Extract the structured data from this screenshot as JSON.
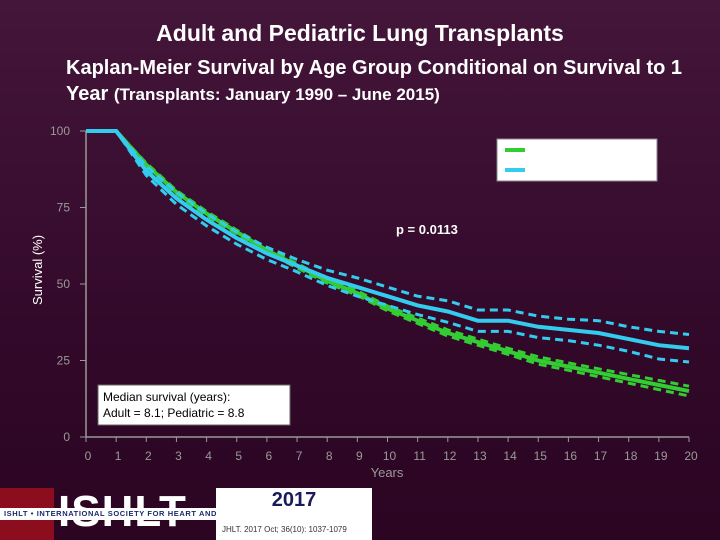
{
  "header": {
    "title": "Adult and Pediatric Lung Transplants",
    "subtitle_main": "Kaplan-Meier Survival by Age Group Conditional on Survival to 1 Year",
    "subtitle_small": "(Transplants: January 1990 – June 2015)"
  },
  "chart_data": {
    "type": "line",
    "xlabel": "Years",
    "ylabel": "Survival (%)",
    "xlim": [
      0,
      20
    ],
    "ylim": [
      0,
      100
    ],
    "xticks": [
      0,
      1,
      2,
      3,
      4,
      5,
      6,
      7,
      8,
      9,
      10,
      11,
      12,
      13,
      14,
      15,
      16,
      17,
      18,
      19,
      20
    ],
    "yticks": [
      0,
      25,
      50,
      75,
      100
    ],
    "grid": false,
    "legend_position": "top-right",
    "annotations": {
      "p_value": "p = 0.0113",
      "median_line1": "Median survival (years):",
      "median_line2": "Adult = 8.1; Pediatric = 8.8"
    },
    "series": [
      {
        "color": "#33cc33",
        "x": [
          0,
          1,
          2,
          3,
          4,
          5,
          6,
          7,
          8,
          9,
          10,
          11,
          12,
          13,
          14,
          15,
          16,
          17,
          18,
          19,
          20
        ],
        "values": [
          100,
          100,
          89,
          80,
          73,
          67,
          61,
          56,
          51,
          47,
          42,
          38,
          34,
          31,
          28,
          25,
          23,
          21,
          19,
          17,
          15
        ],
        "ci_upper": [
          100,
          100,
          89.5,
          80.6,
          73.7,
          67.6,
          61.7,
          56.7,
          51.7,
          47.7,
          42.8,
          38.9,
          35,
          32,
          29,
          26.2,
          24.2,
          22.3,
          20.4,
          18.5,
          16.6
        ],
        "ci_lower": [
          100,
          100,
          88.5,
          79.4,
          72.3,
          66.4,
          60.3,
          55.3,
          50.3,
          46.3,
          41.2,
          37.1,
          33,
          30,
          27,
          23.8,
          21.8,
          19.7,
          17.6,
          15.5,
          13.4
        ]
      },
      {
        "color": "#33ccee",
        "x": [
          0,
          1,
          2,
          3,
          4,
          5,
          6,
          7,
          8,
          9,
          10,
          11,
          12,
          13,
          14,
          15,
          16,
          17,
          18,
          19,
          20
        ],
        "values": [
          100,
          100,
          87,
          78,
          71,
          65,
          60,
          56,
          52,
          49,
          46,
          43,
          41,
          38,
          38,
          36,
          35,
          34,
          32,
          30,
          29
        ],
        "ci_upper": [
          100,
          100,
          88.5,
          80,
          73,
          67,
          62,
          58,
          54.5,
          52,
          49,
          46,
          44.5,
          41.5,
          41.5,
          39.5,
          38.5,
          38,
          36,
          34.5,
          33.5
        ],
        "ci_lower": [
          100,
          100,
          85.5,
          76,
          69,
          63,
          58,
          54,
          49.5,
          46,
          43,
          40,
          37.5,
          34.5,
          34.5,
          32.5,
          31.5,
          30,
          28,
          25.5,
          24.5
        ]
      }
    ]
  },
  "footer": {
    "org_short": "ISHLT",
    "org_full": "ISHLT • INTERNATIONAL SOCIETY FOR HEART AND LUNG TRANSPLANTATION",
    "year": "2017",
    "citation": "JHLT. 2017 Oct; 36(10): 1037-1079"
  }
}
